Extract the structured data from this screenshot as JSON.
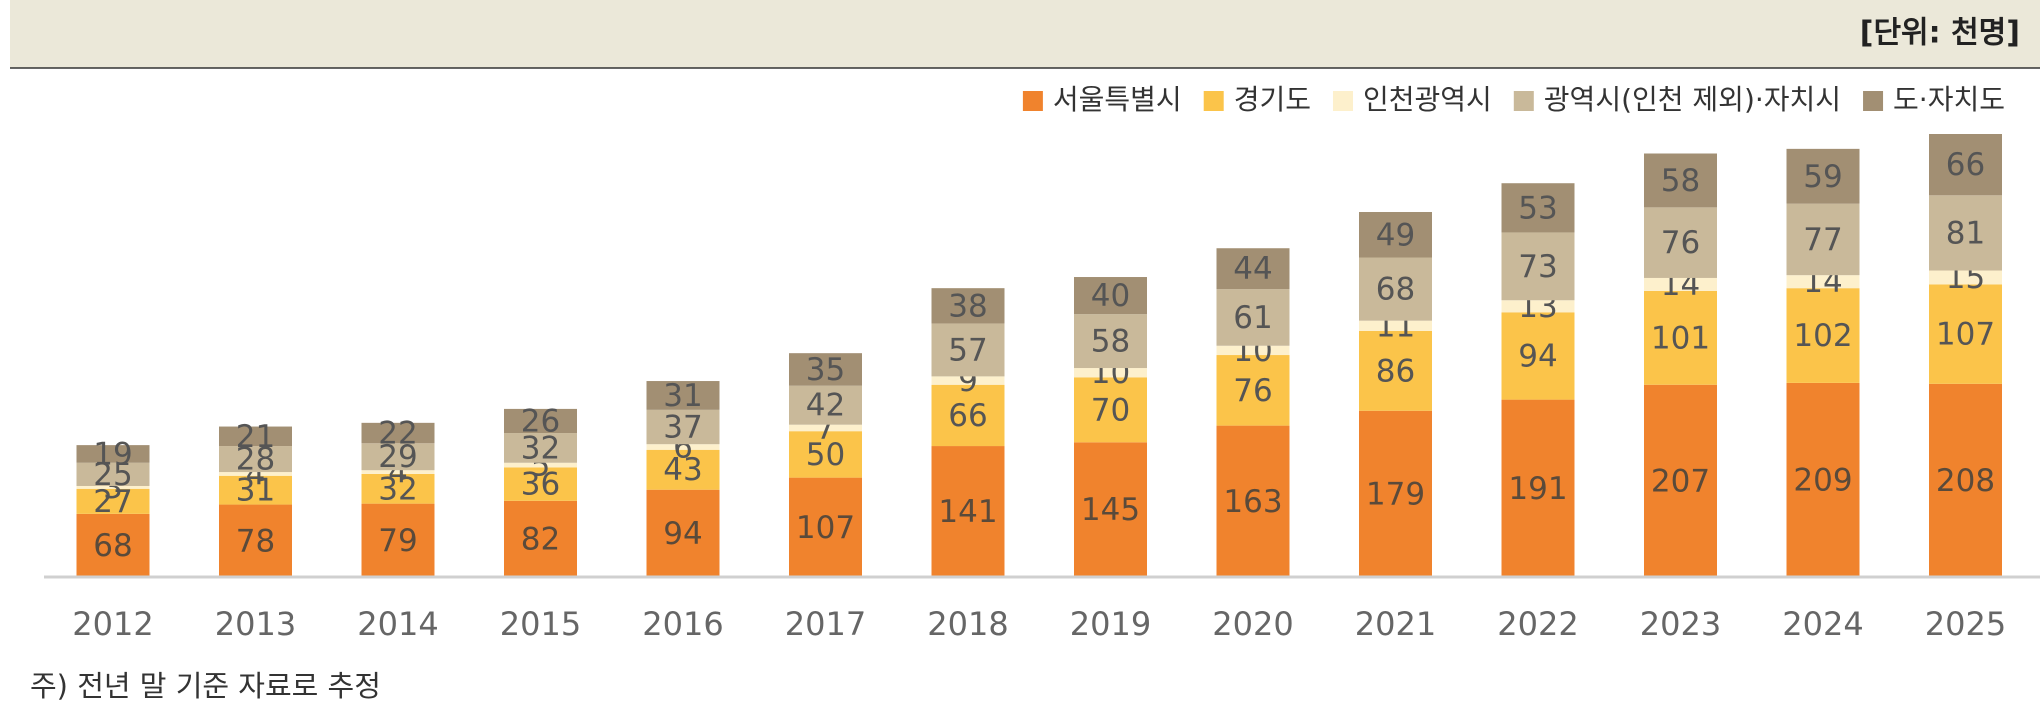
{
  "chart_data": {
    "type": "stacked_bar",
    "unit": "[단위: 천명]",
    "note": "주) 전년 말 기준 자료로 추정",
    "categories": [
      "2012",
      "2013",
      "2014",
      "2015",
      "2016",
      "2017",
      "2018",
      "2019",
      "2020",
      "2021",
      "2022",
      "2023",
      "2024",
      "2025"
    ],
    "series": [
      {
        "name": "서울특별시",
        "color": "#f0832d",
        "values": [
          68,
          78,
          79,
          82,
          94,
          107,
          141,
          145,
          163,
          179,
          191,
          207,
          209,
          208
        ]
      },
      {
        "name": "경기도",
        "color": "#fbc44a",
        "values": [
          27,
          31,
          32,
          36,
          43,
          50,
          66,
          70,
          76,
          86,
          94,
          101,
          102,
          107
        ]
      },
      {
        "name": "인천광역시",
        "color": "#fdf0cc",
        "values": [
          3,
          4,
          4,
          5,
          6,
          7,
          9,
          10,
          10,
          11,
          13,
          14,
          14,
          15
        ]
      },
      {
        "name": "광역시(인천 제외)·자치시",
        "color": "#c9b99a",
        "values": [
          25,
          28,
          29,
          32,
          37,
          42,
          57,
          58,
          61,
          68,
          73,
          76,
          77,
          81
        ]
      },
      {
        "name": "도·자치도",
        "color": "#a28f73",
        "values": [
          19,
          21,
          22,
          26,
          31,
          35,
          38,
          40,
          44,
          49,
          53,
          58,
          59,
          66
        ]
      }
    ]
  }
}
